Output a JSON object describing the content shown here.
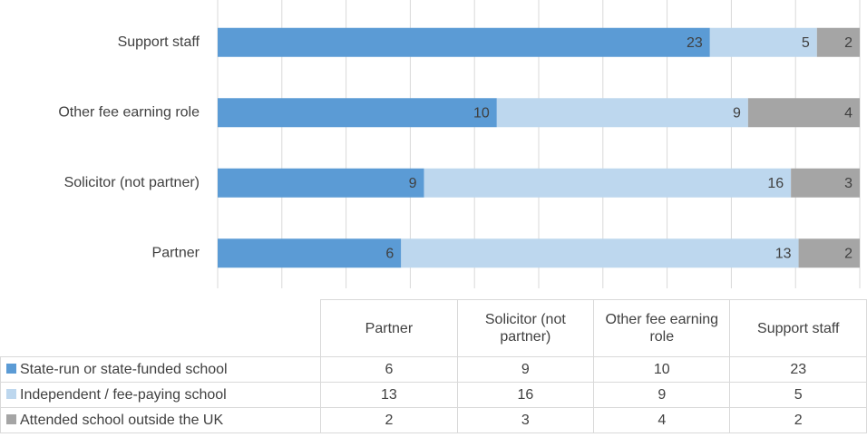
{
  "chart_data": {
    "type": "stacked_bar_100",
    "categories": [
      "Partner",
      "Solicitor (not partner)",
      "Other fee earning role",
      "Support staff"
    ],
    "series": [
      {
        "name": "State-run or state-funded school",
        "color": "#5b9bd5",
        "values": [
          6,
          9,
          10,
          23
        ]
      },
      {
        "name": "Independent / fee-paying school",
        "color": "#bdd7ee",
        "values": [
          13,
          16,
          9,
          5
        ]
      },
      {
        "name": "Attended school outside the UK",
        "color": "#a5a5a5",
        "values": [
          2,
          3,
          4,
          2
        ]
      }
    ],
    "xlim": [
      0,
      100
    ],
    "xticks": [
      0,
      10,
      20,
      30,
      40,
      50,
      60,
      70,
      80,
      90,
      100
    ],
    "grid": true
  }
}
